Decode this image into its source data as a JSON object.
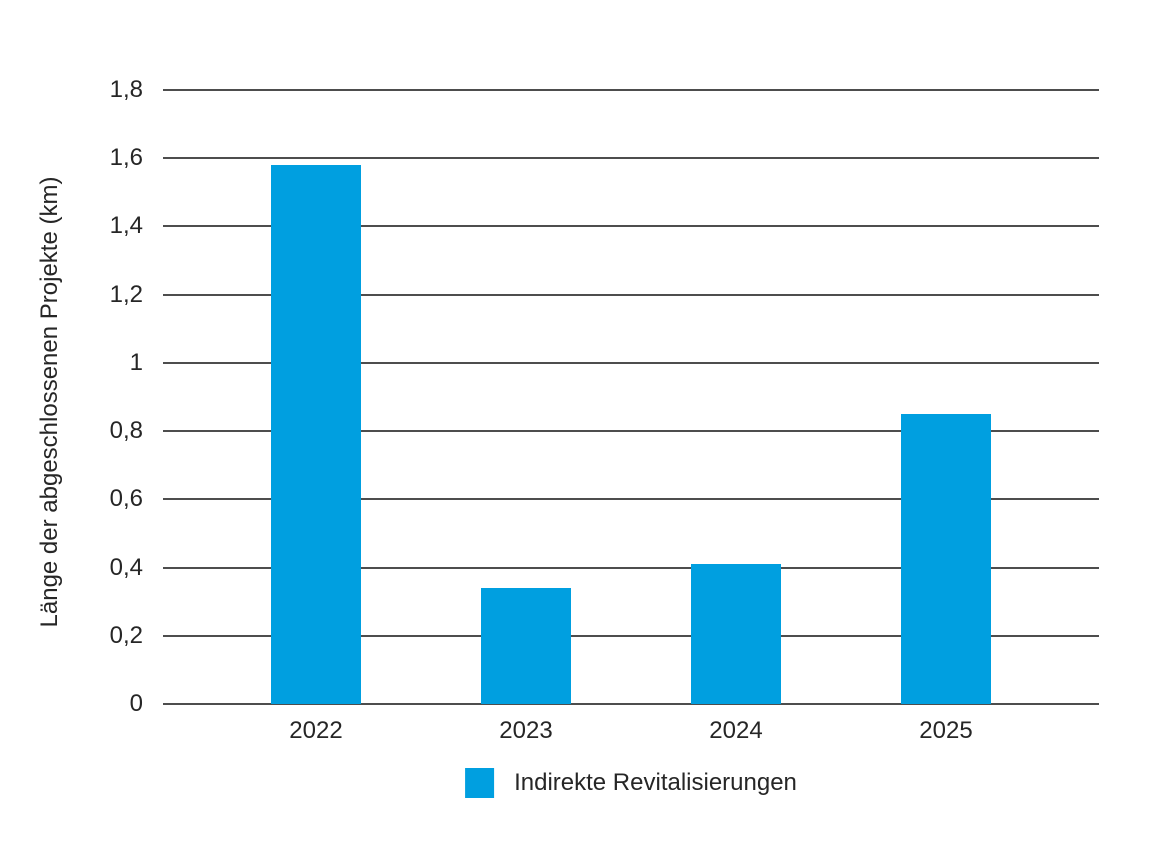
{
  "chart_data": {
    "type": "bar",
    "categories": [
      "2022",
      "2023",
      "2024",
      "2025"
    ],
    "series": [
      {
        "name": "Indirekte Revitalisierungen",
        "values": [
          1.58,
          0.34,
          0.41,
          0.85
        ]
      }
    ],
    "title": "",
    "xlabel": "",
    "ylabel": "Länge der abgeschlossenen Projekte (km)",
    "ylim": [
      0,
      1.8
    ],
    "ytick_step": 0.2,
    "ytick_labels": [
      "0",
      "0,2",
      "0,4",
      "0,6",
      "0,8",
      "1",
      "1,2",
      "1,4",
      "1,6",
      "1,8"
    ],
    "grid": true,
    "legend_position": "bottom",
    "bar_color": "#009fe0",
    "gridline_color": "#4d4d4d",
    "text_color": "#262626",
    "background_color": "#ffffff"
  }
}
